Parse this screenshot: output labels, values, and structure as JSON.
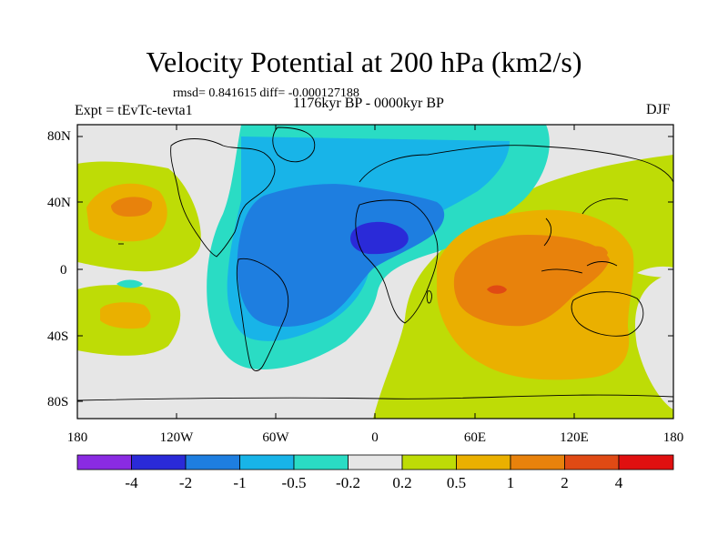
{
  "figure": {
    "title": "Velocity Potential at 200 hPa (km2/s)",
    "stats": "rmsd= 0.841615 diff= -0.000127188",
    "period": "1176kyr BP - 0000kyr BP",
    "experiment": "Expt = tEvTc-tevta1",
    "season": "DJF"
  },
  "axes": {
    "y_ticks": [
      "80N",
      "40N",
      "0",
      "40S",
      "80S"
    ],
    "x_ticks": [
      "180",
      "120W",
      "60W",
      "0",
      "60E",
      "120E",
      "180"
    ]
  },
  "colorbar": {
    "labels": [
      "-4",
      "-2",
      "-1",
      "-0.5",
      "-0.2",
      "0.2",
      "0.5",
      "1",
      "2",
      "4"
    ],
    "colors": [
      "#8a2be2",
      "#2a2ad8",
      "#1e7ee0",
      "#18b4e8",
      "#2adcc4",
      "#e6e6e6",
      "#bedc06",
      "#eab000",
      "#e8820c",
      "#e04a14",
      "#e01010"
    ]
  },
  "regions": {
    "neutral": "#e6e6e6",
    "names": [
      "mid-pacific-positive",
      "north-pacific-max",
      "south-pacific-positive",
      "atlantic-africa-negative",
      "africa-core-min",
      "indo-pacific-positive",
      "indian-ocean-max"
    ]
  }
}
